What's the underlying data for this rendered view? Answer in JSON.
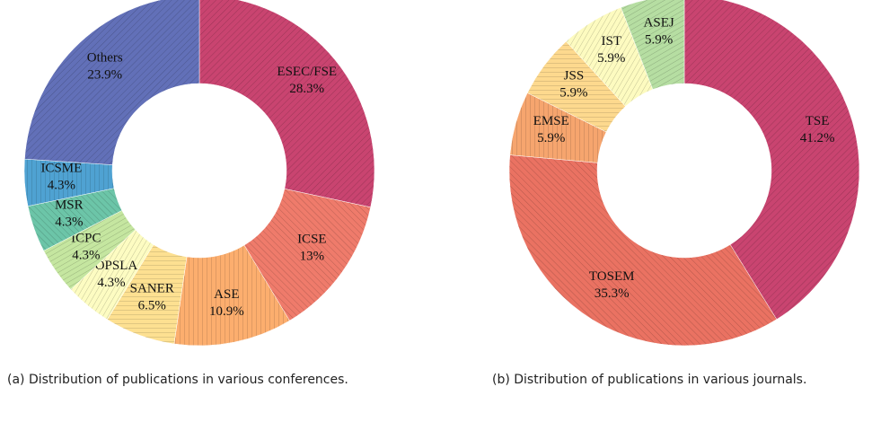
{
  "chart_data": [
    {
      "type": "donut",
      "caption": "(a) Distribution of publications in various conferences.",
      "categories": [
        "ESEC/FSE",
        "ICSE",
        "ASE",
        "SANER",
        "OOPSLA",
        "ICPC",
        "MSR",
        "ICSME",
        "Others"
      ],
      "values": [
        28.3,
        13,
        10.9,
        6.5,
        4.3,
        4.3,
        4.3,
        4.3,
        23.9
      ],
      "value_labels": [
        "28.3%",
        "13%",
        "10.9%",
        "6.5%",
        "4.3%",
        "4.3%",
        "4.3%",
        "4.3%",
        "23.9%"
      ],
      "colors": [
        "#c94470",
        "#ef7b6b",
        "#fcae6e",
        "#fde091",
        "#fdfcc2",
        "#c5e6a0",
        "#6cc5a8",
        "#4fa2d2",
        "#6270b8"
      ]
    },
    {
      "type": "donut",
      "caption": "(b) Distribution of publications in various journals.",
      "categories": [
        "TSE",
        "TOSEM",
        "EMSE",
        "JSS",
        "IST",
        "ASEJ"
      ],
      "values": [
        41.2,
        35.3,
        5.9,
        5.9,
        5.9,
        5.9
      ],
      "value_labels": [
        "41.2%",
        "35.3%",
        "5.9%",
        "5.9%",
        "5.9%",
        "5.9%"
      ],
      "colors": [
        "#c94470",
        "#ea7262",
        "#f6a56e",
        "#fdd98e",
        "#fdfbc0",
        "#b6dea2"
      ]
    }
  ]
}
